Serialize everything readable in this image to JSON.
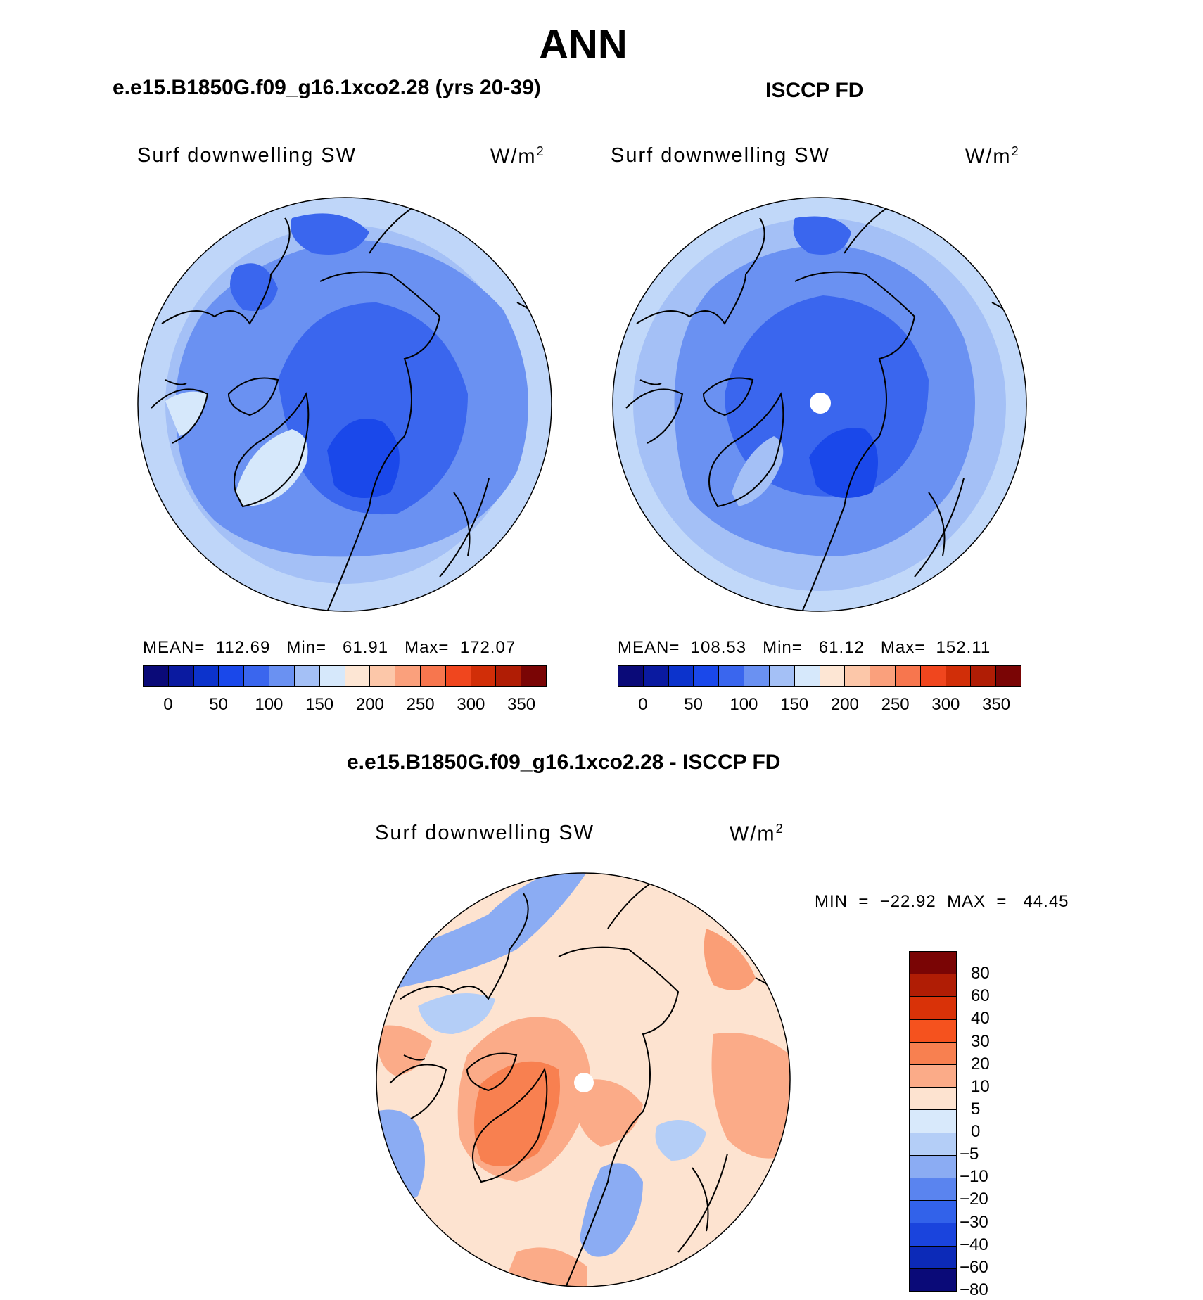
{
  "title": "ANN",
  "panels": {
    "left": {
      "title": "e.e15.B1850G.f09_g16.1xco2.28 (yrs 20-39)",
      "label": "Surf downwelling SW",
      "units": "W/m",
      "units_sup": "2",
      "stats": "MEAN=  112.69   Min=   61.91   Max=  172.07"
    },
    "right": {
      "title": "ISCCP FD",
      "label": "Surf downwelling SW",
      "units": "W/m",
      "units_sup": "2",
      "stats": "MEAN=  108.53   Min=   61.12   Max=  152.11"
    },
    "diff": {
      "title": "e.e15.B1850G.f09_g16.1xco2.28 - ISCCP FD",
      "label": "Surf downwelling SW",
      "units": "W/m",
      "units_sup": "2",
      "stats": "MIN  =  −22.92  MAX  =   44.45"
    }
  },
  "colorbar_abs": {
    "colors": [
      "#0a0a78",
      "#0a1aa0",
      "#0c33cc",
      "#1a48ea",
      "#3a66ee",
      "#6a91f2",
      "#a4c0f6",
      "#d6e8fb",
      "#fde6d4",
      "#fcc7a9",
      "#faa07c",
      "#f7764e",
      "#f0461e",
      "#d12e08",
      "#b01d05",
      "#7a0505"
    ],
    "ticks": [
      "0",
      "50",
      "100",
      "150",
      "200",
      "250",
      "300",
      "350"
    ]
  },
  "colorbar_diff": {
    "colors": [
      "#7a0505",
      "#b01d05",
      "#d93208",
      "#f5521e",
      "#f88050",
      "#fbab88",
      "#fde3d0",
      "#d8e9fb",
      "#b4cef7",
      "#8bacf3",
      "#5a84ef",
      "#3262ea",
      "#1a44dd",
      "#0c2ab8",
      "#0a0a78"
    ],
    "ticks": [
      "80",
      "60",
      "40",
      "30",
      "20",
      "10",
      "5",
      "0",
      "−5",
      "−10",
      "−20",
      "−30",
      "−40",
      "−60",
      "−80"
    ]
  },
  "map_colors": {
    "abs_bands": [
      "#d6e8fb",
      "#a4c0f6",
      "#6a91f2",
      "#3a66ee",
      "#1a48ea"
    ],
    "diff_bands": [
      "#fde3d0",
      "#fbab88",
      "#d8e9fb",
      "#b4cef7",
      "#8bacf3",
      "#f88050"
    ]
  }
}
